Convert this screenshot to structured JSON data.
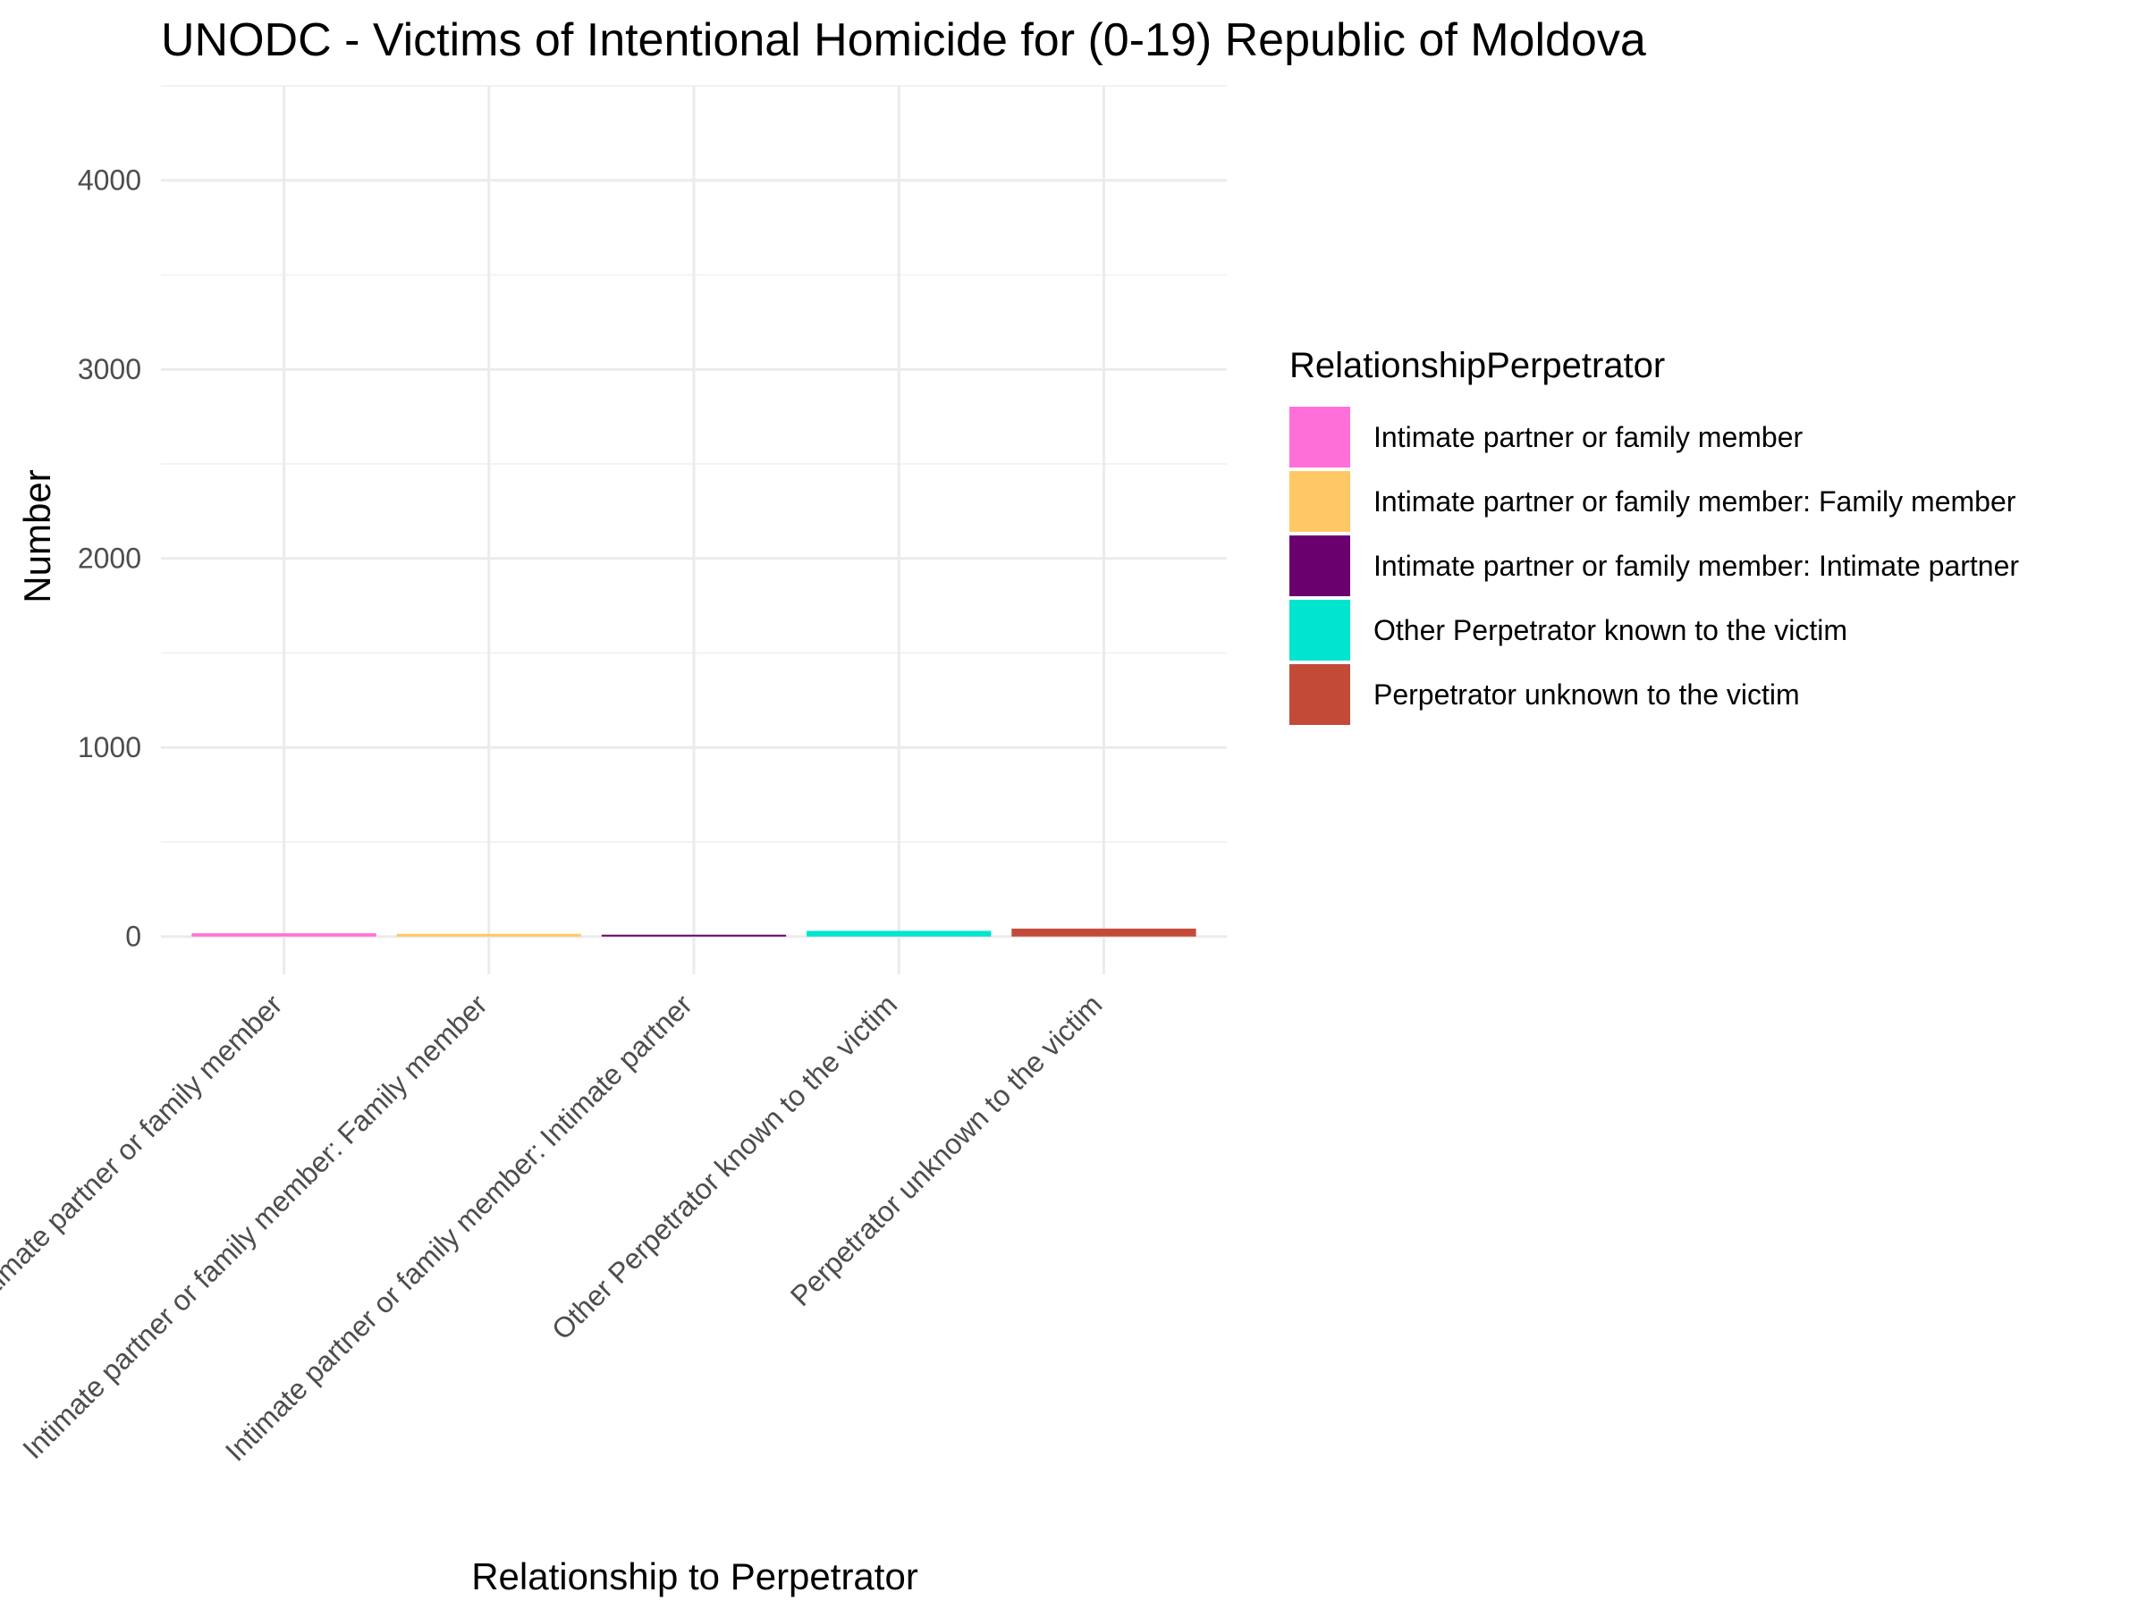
{
  "chart_data": {
    "type": "bar",
    "title": "UNODC - Victims of Intentional Homicide for (0-19) Republic of Moldova",
    "xlabel": "Relationship to Perpetrator",
    "ylabel": "Number",
    "ylim": [
      -200,
      4500
    ],
    "yticks": [
      0,
      1000,
      2000,
      3000,
      4000
    ],
    "grid": true,
    "categories": [
      "Intimate partner or family member",
      "Intimate partner or family member: Family member",
      "Intimate partner or family member: Intimate partner",
      "Other Perpetrator known to the victim",
      "Perpetrator unknown to the victim"
    ],
    "values": [
      17,
      14,
      3,
      30,
      42
    ],
    "colors": [
      "#FF6FD8",
      "#FFC864",
      "#6A006E",
      "#00E5CF",
      "#C44A38"
    ],
    "legend": {
      "title": "RelationshipPerpetrator",
      "position": "right",
      "entries": [
        "Intimate partner or family member",
        "Intimate partner or family member: Family member",
        "Intimate partner or family member: Intimate partner",
        "Other Perpetrator known to the victim",
        "Perpetrator unknown to the victim"
      ]
    }
  }
}
